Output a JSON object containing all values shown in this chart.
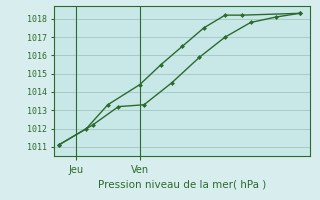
{
  "title": "",
  "xlabel": "Pression niveau de la mer( hPa )",
  "ylim": [
    1010.5,
    1018.7
  ],
  "xlim": [
    0,
    12
  ],
  "yticks": [
    1011,
    1012,
    1013,
    1014,
    1015,
    1016,
    1017,
    1018
  ],
  "xtick_positions": [
    1.0,
    4.0
  ],
  "xtick_labels": [
    "Jeu",
    "Ven"
  ],
  "vline_positions": [
    1.0,
    4.0
  ],
  "line1_x": [
    0.2,
    1.5,
    2.5,
    4.0,
    5.0,
    6.0,
    7.0,
    8.0,
    8.8,
    11.5
  ],
  "line1_y": [
    1011.1,
    1012.0,
    1013.3,
    1014.4,
    1015.5,
    1016.5,
    1017.5,
    1018.2,
    1018.2,
    1018.3
  ],
  "line2_x": [
    0.2,
    1.8,
    3.0,
    4.2,
    5.5,
    6.8,
    8.0,
    9.2,
    10.4,
    11.5
  ],
  "line2_y": [
    1011.1,
    1012.2,
    1013.2,
    1013.3,
    1014.5,
    1015.9,
    1017.0,
    1017.8,
    1018.1,
    1018.3
  ],
  "line_color": "#2d6a2d",
  "bg_color": "#d8eeee",
  "plot_bg_color": "#c8e8e8",
  "grid_color": "#aacaca",
  "marker": "D",
  "marker_size": 2.5,
  "linewidth": 1.0
}
